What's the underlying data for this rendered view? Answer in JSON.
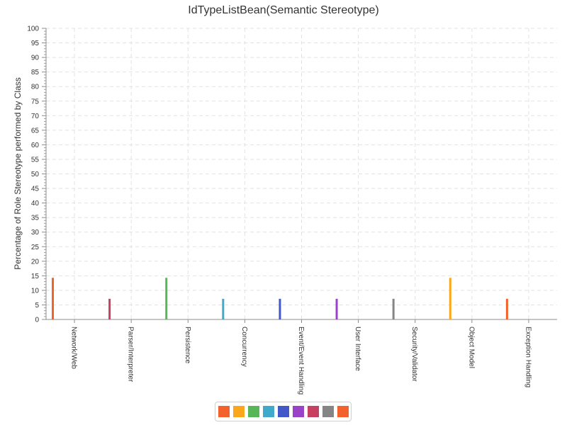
{
  "chart_data": {
    "type": "bar",
    "title": "IdTypeListBean(Semantic Stereotype)",
    "xlabel": "",
    "ylabel": "Percentage of Role Stereotype performed by Class",
    "ylim": [
      0,
      100
    ],
    "y_ticks": [
      "0",
      "5",
      "10",
      "15",
      "20",
      "25",
      "30",
      "35",
      "40",
      "45",
      "50",
      "55",
      "60",
      "65",
      "70",
      "75",
      "80",
      "85",
      "90",
      "95",
      "100"
    ],
    "grid": true,
    "legend_placement": "bottom",
    "categories": [
      "Network/Web",
      "Parser/Interpreter",
      "Persistence",
      "Concurrency",
      "Event/Event Handling",
      "User Interface",
      "Security/Validator",
      "Object Model",
      "Exception Handling"
    ],
    "values": [
      14.3,
      7.1,
      14.3,
      7.1,
      7.1,
      7.1,
      7.1,
      14.3,
      7.1
    ],
    "colors": [
      "#f3622d",
      "#c8405f",
      "#57b757",
      "#41a9c9",
      "#4258c9",
      "#9a42c8",
      "#858585",
      "#fba71b",
      "#f3622d"
    ],
    "legend_colors": [
      "#f3622d",
      "#fba71b",
      "#57b757",
      "#41a9c9",
      "#4258c9",
      "#9a42c8",
      "#c8405f",
      "#858585",
      "#f3622d"
    ]
  }
}
